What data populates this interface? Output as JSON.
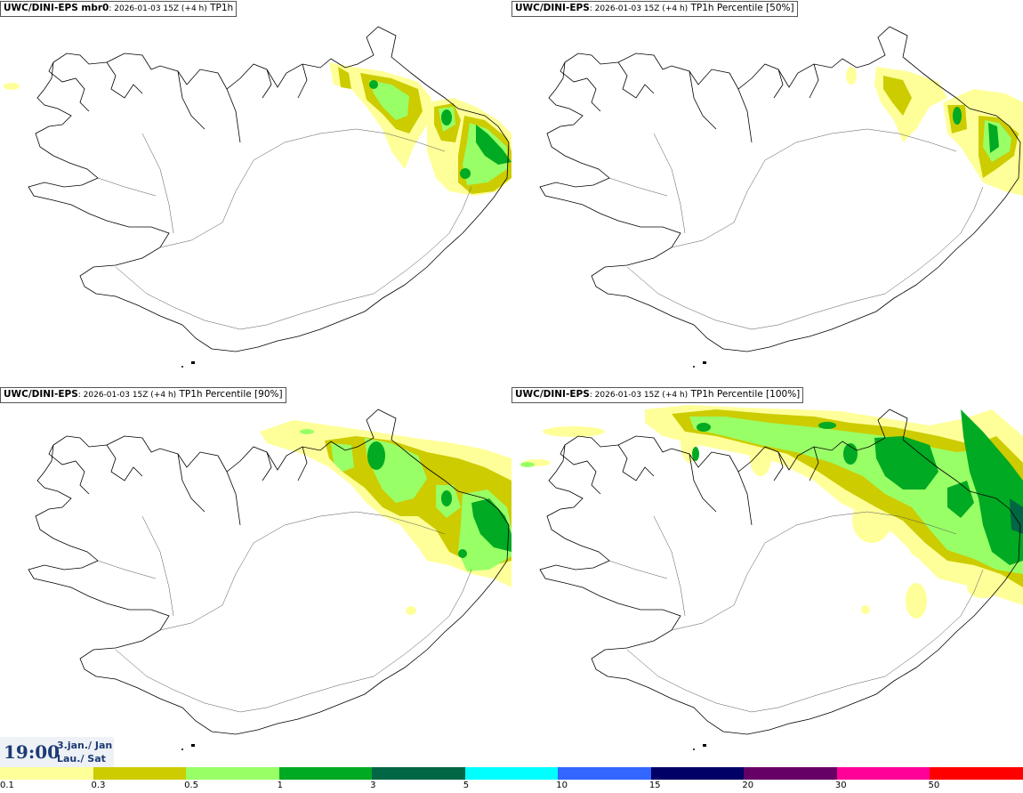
{
  "panels": [
    {
      "model": "UWC/DINI-EPS mbr0",
      "meta": ": 2026-01-03 15Z (+4 h)",
      "field": "TP1h"
    },
    {
      "model": "UWC/DINI-EPS",
      "meta": ": 2026-01-03 15Z (+4 h)",
      "field": "TP1h Percentile [50%]"
    },
    {
      "model": "UWC/DINI-EPS",
      "meta": ": 2026-01-03 15Z (+4 h)",
      "field": "TP1h Percentile [90%]"
    },
    {
      "model": "UWC/DINI-EPS",
      "meta": ": 2026-01-03 15Z (+4 h)",
      "field": "TP1h Percentile [100%]"
    }
  ],
  "time": {
    "clock": "19:00",
    "date_line1": "3.jan./ Jan",
    "date_line2": "Lau./ Sat"
  },
  "legend": {
    "colors": [
      "#ffff99",
      "#cccc00",
      "#99ff66",
      "#00aa22",
      "#006644",
      "#00ffff",
      "#3366ff",
      "#000066",
      "#660066",
      "#ff0099",
      "#ff0000"
    ],
    "labels": [
      "0.1",
      "0.3",
      "0.5",
      "1",
      "3",
      "5",
      "10",
      "15",
      "20",
      "30",
      "50"
    ]
  }
}
